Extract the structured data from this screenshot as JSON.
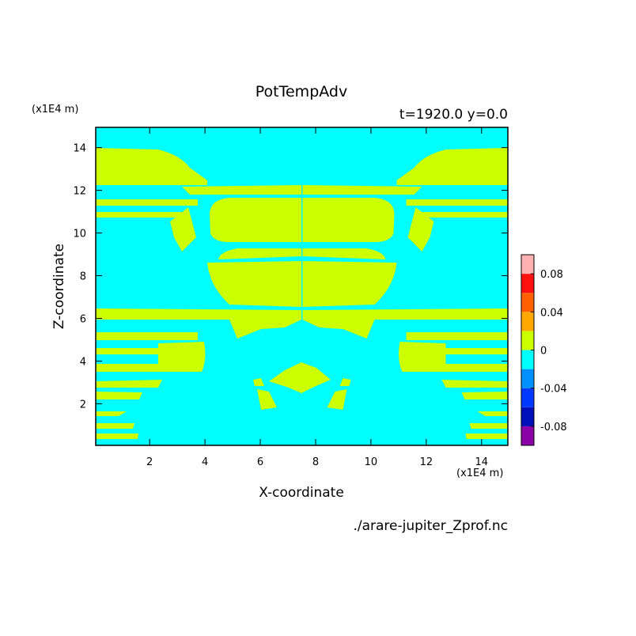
{
  "chart_data": {
    "type": "contour",
    "title": "PotTempAdv",
    "subtitle": "t=1920.0 y=0.0",
    "x_label": "X-coordinate",
    "y_label": "Z-coordinate",
    "x_unit": "(x1E4 m)",
    "y_unit": "(x1E4 m)",
    "source": "./arare-jupiter_Zprof.nc",
    "xlim": [
      0.05,
      14.95
    ],
    "ylim": [
      0.05,
      14.95
    ],
    "xticks": [
      2,
      4,
      6,
      8,
      10,
      12,
      14
    ],
    "yticks": [
      2,
      4,
      6,
      8,
      10,
      12,
      14
    ],
    "levels": [
      -0.1,
      -0.08,
      -0.06,
      -0.04,
      -0.02,
      0,
      0.02,
      0.04,
      0.06,
      0.08,
      0.1
    ],
    "colors": [
      "#8c00a8",
      "#0010b8",
      "#0038ff",
      "#0090ff",
      "#00ffff",
      "#ccff00",
      "#ffa800",
      "#ff6000",
      "#ff1010",
      "#ffb0b0"
    ],
    "colorbar_ticks": [
      0.08,
      0.04,
      0,
      -0.04,
      -0.08
    ]
  }
}
